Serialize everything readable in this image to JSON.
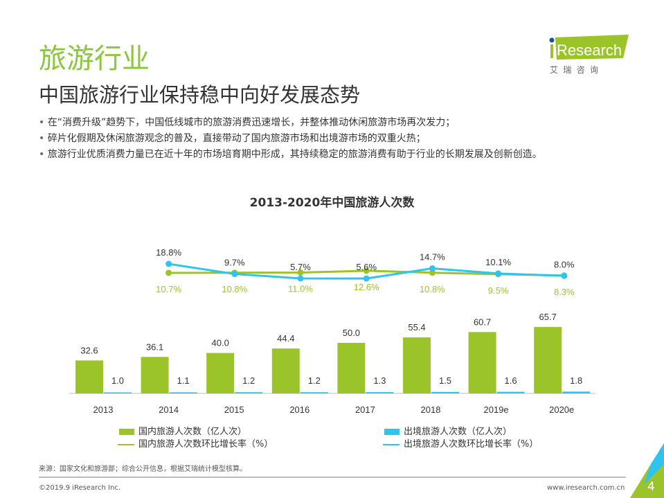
{
  "header": {
    "section": "旅游行业",
    "title": "中国旅游行业保持稳中向好发展态势",
    "bullets": [
      "在“消费升级”趋势下，中国低线城市的旅游消费迅速增长，并整体推动休闲旅游市场再次发力；",
      "碎片化假期及休闲旅游观念的普及，直接带动了国内旅游市场和出境游市场的双重火热；",
      "旅游行业优质消费力量已在近十年的市场培育期中形成，其持续稳定的旅游消费有助于行业的长期发展及创新创造。"
    ]
  },
  "logo": {
    "text": "iResearch",
    "sub": "艾 瑞 咨 询"
  },
  "colors": {
    "green": "#9bc42b",
    "blue": "#2ec4ef"
  },
  "chart_data": {
    "type": "bar+line",
    "title": "2013-2020年中国旅游人次数",
    "categories": [
      "2013",
      "2014",
      "2015",
      "2016",
      "2017",
      "2018",
      "2019e",
      "2020e"
    ],
    "series": [
      {
        "name": "国内旅游人次数（亿人次）",
        "type": "bar",
        "values": [
          32.6,
          36.1,
          40.0,
          44.4,
          50.0,
          55.4,
          60.7,
          65.7
        ],
        "labels": [
          "32.6",
          "36.1",
          "40.0",
          "44.4",
          "50.0",
          "55.4",
          "60.7",
          "65.7"
        ]
      },
      {
        "name": "出境旅游人次数（亿人次）",
        "type": "bar",
        "values": [
          1.0,
          1.1,
          1.2,
          1.2,
          1.3,
          1.5,
          1.6,
          1.8
        ],
        "labels": [
          "1.0",
          "1.1",
          "1.2",
          "1.2",
          "1.3",
          "1.5",
          "1.6",
          "1.8"
        ]
      },
      {
        "name": "国内旅游人次数环比增长率（%）",
        "type": "line",
        "values": [
          null,
          10.7,
          10.8,
          11.0,
          12.6,
          10.8,
          9.5,
          8.3
        ],
        "labels": [
          "",
          "10.7%",
          "10.8%",
          "11.0%",
          "12.6%",
          "10.8%",
          "9.5%",
          "8.3%"
        ]
      },
      {
        "name": "出境旅游人次数环比增长率（%）",
        "type": "line",
        "values": [
          null,
          18.8,
          9.7,
          5.7,
          5.6,
          14.7,
          10.1,
          8.0
        ],
        "labels": [
          "",
          "18.8%",
          "9.7%",
          "5.7%",
          "5.6%",
          "14.7%",
          "10.1%",
          "8.0%"
        ]
      }
    ],
    "legend": "bottom",
    "grid": false
  },
  "footer": {
    "source": "来源：国家文化和旅游部；综合公开信息，根据艾瑞统计模型核算。",
    "copyright": "©2019.9 iResearch Inc.",
    "url": "www.iresearch.com.cn",
    "page": "4"
  }
}
